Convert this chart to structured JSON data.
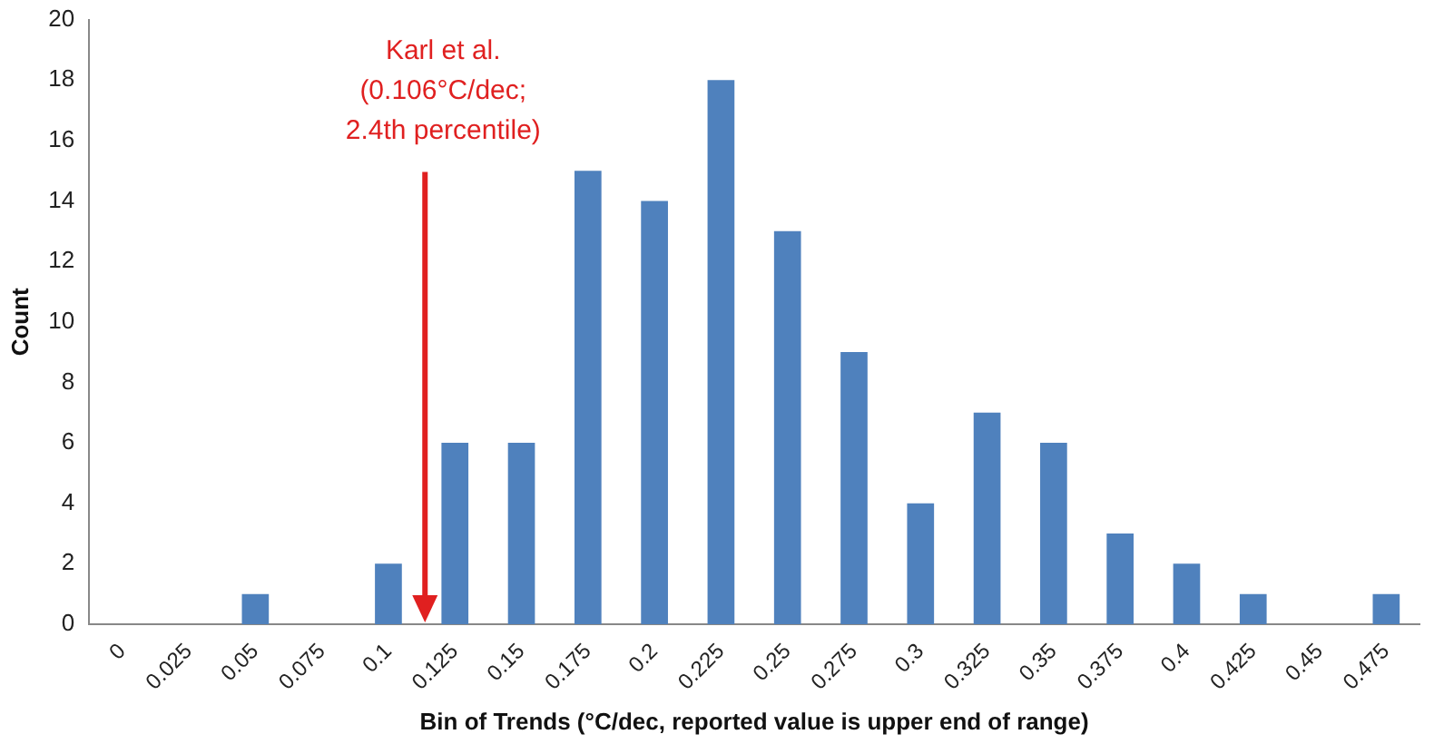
{
  "chart_data": {
    "type": "bar",
    "xlabel": "Bin of Trends (°C/dec, reported value is upper end of range)",
    "ylabel": "Count",
    "categories": [
      "0",
      "0.025",
      "0.05",
      "0.075",
      "0.1",
      "0.125",
      "0.15",
      "0.175",
      "0.2",
      "0.225",
      "0.25",
      "0.275",
      "0.3",
      "0.325",
      "0.35",
      "0.375",
      "0.4",
      "0.425",
      "0.45",
      "0.475"
    ],
    "values": [
      0,
      0,
      1,
      0,
      2,
      6,
      6,
      15,
      14,
      18,
      13,
      9,
      4,
      7,
      6,
      3,
      2,
      1,
      0,
      1
    ],
    "color": "#4f81bd",
    "ylim": [
      0,
      20
    ],
    "yticks": [
      0,
      2,
      4,
      6,
      8,
      10,
      12,
      14,
      16,
      18,
      20
    ],
    "grid": false,
    "legend": false,
    "annotations": [
      "Karl et al.\n(0.106°C/dec;\n2.4th percentile)"
    ]
  }
}
